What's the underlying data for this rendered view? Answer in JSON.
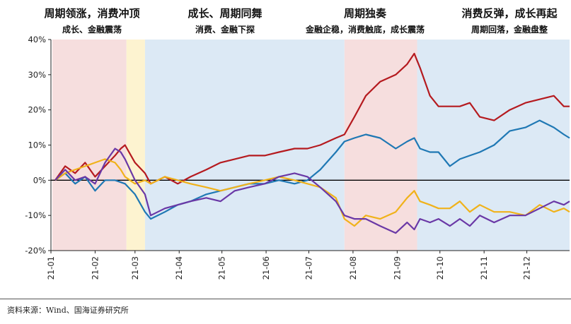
{
  "colors": {
    "cyclical": "#b51a1f",
    "growth": "#1f78b4",
    "consumption": "#f0b21a",
    "financial": "#6a38a6",
    "band_pink": "#f6dede",
    "band_yellow": "#fdf3d0",
    "band_blue": "#dce9f5"
  },
  "source": "资料来源：Wind、国海证券研究所",
  "chart_data": {
    "type": "line",
    "x_ticks": [
      "21-01",
      "21-02",
      "21-03",
      "21-04",
      "21-05",
      "21-06",
      "21-07",
      "21-08",
      "21-09",
      "21-10",
      "21-11",
      "21-12"
    ],
    "ylim": [
      -20,
      40
    ],
    "y_ticks": [
      "-20%",
      "-10%",
      "0%",
      "10%",
      "20%",
      "30%",
      "40%"
    ],
    "phases": [
      {
        "title": "周期领涨，消费冲顶",
        "subtitle": "成长、金融震荡",
        "start": "2021-01-02",
        "end": "2021-02-23",
        "band": "band_pink"
      },
      {
        "title": "",
        "subtitle": "",
        "start": "2021-02-23",
        "end": "2021-03-08",
        "band": "band_yellow"
      },
      {
        "title": "成长、周期同舞",
        "subtitle": "消费、金融下探",
        "start": "2021-03-08",
        "end": "2021-07-26",
        "band": "band_blue"
      },
      {
        "title": "周期独奏",
        "subtitle": "金融企稳，消费触底，成长震荡",
        "start": "2021-07-26",
        "end": "2021-09-15",
        "band": "band_pink"
      },
      {
        "title": "消费反弹，成长再起",
        "subtitle": "周期回落，金融盘整",
        "start": "2021-09-15",
        "end": "2021-12-31",
        "band": "band_blue"
      }
    ],
    "series": [
      {
        "color_key": "cyclical",
        "points": [
          [
            "2021-01-04",
            0
          ],
          [
            "2021-01-11",
            4
          ],
          [
            "2021-01-18",
            2
          ],
          [
            "2021-01-25",
            5
          ],
          [
            "2021-02-01",
            1
          ],
          [
            "2021-02-08",
            4
          ],
          [
            "2021-02-15",
            7
          ],
          [
            "2021-02-19",
            9
          ],
          [
            "2021-02-22",
            10
          ],
          [
            "2021-03-01",
            5
          ],
          [
            "2021-03-08",
            2
          ],
          [
            "2021-03-12",
            -1
          ],
          [
            "2021-03-22",
            1
          ],
          [
            "2021-03-31",
            -1
          ],
          [
            "2021-04-09",
            1
          ],
          [
            "2021-04-20",
            3
          ],
          [
            "2021-04-30",
            5
          ],
          [
            "2021-05-10",
            6
          ],
          [
            "2021-05-20",
            7
          ],
          [
            "2021-05-31",
            7
          ],
          [
            "2021-06-10",
            8
          ],
          [
            "2021-06-21",
            9
          ],
          [
            "2021-06-30",
            9
          ],
          [
            "2021-07-09",
            10
          ],
          [
            "2021-07-20",
            12
          ],
          [
            "2021-07-26",
            13
          ],
          [
            "2021-08-02",
            18
          ],
          [
            "2021-08-10",
            24
          ],
          [
            "2021-08-20",
            28
          ],
          [
            "2021-08-31",
            30
          ],
          [
            "2021-09-08",
            33
          ],
          [
            "2021-09-13",
            36
          ],
          [
            "2021-09-17",
            32
          ],
          [
            "2021-09-24",
            24
          ],
          [
            "2021-09-30",
            21
          ],
          [
            "2021-10-15",
            21
          ],
          [
            "2021-10-22",
            22
          ],
          [
            "2021-10-29",
            18
          ],
          [
            "2021-11-08",
            17
          ],
          [
            "2021-11-19",
            20
          ],
          [
            "2021-11-30",
            22
          ],
          [
            "2021-12-10",
            23
          ],
          [
            "2021-12-20",
            24
          ],
          [
            "2021-12-27",
            21
          ],
          [
            "2021-12-31",
            21
          ]
        ]
      },
      {
        "color_key": "growth",
        "points": [
          [
            "2021-01-04",
            0
          ],
          [
            "2021-01-11",
            2
          ],
          [
            "2021-01-18",
            -1
          ],
          [
            "2021-01-25",
            1
          ],
          [
            "2021-02-01",
            -3
          ],
          [
            "2021-02-08",
            0
          ],
          [
            "2021-02-15",
            0
          ],
          [
            "2021-02-22",
            -1
          ],
          [
            "2021-03-01",
            -4
          ],
          [
            "2021-03-08",
            -9
          ],
          [
            "2021-03-12",
            -11
          ],
          [
            "2021-03-22",
            -9
          ],
          [
            "2021-03-31",
            -7
          ],
          [
            "2021-04-09",
            -6
          ],
          [
            "2021-04-20",
            -4
          ],
          [
            "2021-04-30",
            -3
          ],
          [
            "2021-05-10",
            -2
          ],
          [
            "2021-05-20",
            -1
          ],
          [
            "2021-05-31",
            -1
          ],
          [
            "2021-06-10",
            0
          ],
          [
            "2021-06-21",
            -1
          ],
          [
            "2021-06-30",
            0
          ],
          [
            "2021-07-09",
            3
          ],
          [
            "2021-07-20",
            8
          ],
          [
            "2021-07-26",
            11
          ],
          [
            "2021-08-02",
            12
          ],
          [
            "2021-08-10",
            13
          ],
          [
            "2021-08-20",
            12
          ],
          [
            "2021-08-31",
            9
          ],
          [
            "2021-09-08",
            11
          ],
          [
            "2021-09-13",
            12
          ],
          [
            "2021-09-17",
            9
          ],
          [
            "2021-09-24",
            8
          ],
          [
            "2021-09-30",
            8
          ],
          [
            "2021-10-08",
            4
          ],
          [
            "2021-10-15",
            6
          ],
          [
            "2021-10-22",
            7
          ],
          [
            "2021-10-29",
            8
          ],
          [
            "2021-11-08",
            10
          ],
          [
            "2021-11-19",
            14
          ],
          [
            "2021-11-30",
            15
          ],
          [
            "2021-12-10",
            17
          ],
          [
            "2021-12-20",
            15
          ],
          [
            "2021-12-27",
            13
          ],
          [
            "2021-12-31",
            12
          ]
        ]
      },
      {
        "color_key": "consumption",
        "points": [
          [
            "2021-01-04",
            0
          ],
          [
            "2021-01-11",
            2
          ],
          [
            "2021-01-18",
            3
          ],
          [
            "2021-01-25",
            4
          ],
          [
            "2021-02-01",
            5
          ],
          [
            "2021-02-08",
            6
          ],
          [
            "2021-02-15",
            5
          ],
          [
            "2021-02-19",
            3
          ],
          [
            "2021-02-22",
            1
          ],
          [
            "2021-03-01",
            -1
          ],
          [
            "2021-03-08",
            0
          ],
          [
            "2021-03-12",
            -1
          ],
          [
            "2021-03-22",
            1
          ],
          [
            "2021-03-31",
            0
          ],
          [
            "2021-04-09",
            -1
          ],
          [
            "2021-04-20",
            -2
          ],
          [
            "2021-04-30",
            -3
          ],
          [
            "2021-05-10",
            -2
          ],
          [
            "2021-05-20",
            -1
          ],
          [
            "2021-05-31",
            0
          ],
          [
            "2021-06-10",
            1
          ],
          [
            "2021-06-21",
            0
          ],
          [
            "2021-06-30",
            -1
          ],
          [
            "2021-07-09",
            -2
          ],
          [
            "2021-07-20",
            -5
          ],
          [
            "2021-07-26",
            -11
          ],
          [
            "2021-08-02",
            -13
          ],
          [
            "2021-08-10",
            -10
          ],
          [
            "2021-08-20",
            -11
          ],
          [
            "2021-08-31",
            -9
          ],
          [
            "2021-09-08",
            -5
          ],
          [
            "2021-09-13",
            -3
          ],
          [
            "2021-09-17",
            -6
          ],
          [
            "2021-09-24",
            -7
          ],
          [
            "2021-09-30",
            -8
          ],
          [
            "2021-10-08",
            -8
          ],
          [
            "2021-10-15",
            -6
          ],
          [
            "2021-10-22",
            -9
          ],
          [
            "2021-10-29",
            -7
          ],
          [
            "2021-11-08",
            -9
          ],
          [
            "2021-11-19",
            -9
          ],
          [
            "2021-11-30",
            -10
          ],
          [
            "2021-12-10",
            -7
          ],
          [
            "2021-12-20",
            -9
          ],
          [
            "2021-12-27",
            -8
          ],
          [
            "2021-12-31",
            -9
          ]
        ]
      },
      {
        "color_key": "financial",
        "points": [
          [
            "2021-01-04",
            0
          ],
          [
            "2021-01-11",
            3
          ],
          [
            "2021-01-18",
            0
          ],
          [
            "2021-01-25",
            1
          ],
          [
            "2021-02-01",
            -1
          ],
          [
            "2021-02-08",
            5
          ],
          [
            "2021-02-15",
            9
          ],
          [
            "2021-02-19",
            8
          ],
          [
            "2021-02-22",
            6
          ],
          [
            "2021-03-01",
            0
          ],
          [
            "2021-03-08",
            -4
          ],
          [
            "2021-03-12",
            -10
          ],
          [
            "2021-03-22",
            -8
          ],
          [
            "2021-03-31",
            -7
          ],
          [
            "2021-04-09",
            -6
          ],
          [
            "2021-04-20",
            -5
          ],
          [
            "2021-04-30",
            -6
          ],
          [
            "2021-05-10",
            -3
          ],
          [
            "2021-05-20",
            -2
          ],
          [
            "2021-05-31",
            -1
          ],
          [
            "2021-06-10",
            1
          ],
          [
            "2021-06-21",
            2
          ],
          [
            "2021-06-30",
            1
          ],
          [
            "2021-07-09",
            -2
          ],
          [
            "2021-07-20",
            -6
          ],
          [
            "2021-07-26",
            -10
          ],
          [
            "2021-08-02",
            -11
          ],
          [
            "2021-08-10",
            -11
          ],
          [
            "2021-08-20",
            -13
          ],
          [
            "2021-08-31",
            -15
          ],
          [
            "2021-09-08",
            -12
          ],
          [
            "2021-09-13",
            -14
          ],
          [
            "2021-09-17",
            -11
          ],
          [
            "2021-09-24",
            -12
          ],
          [
            "2021-09-30",
            -11
          ],
          [
            "2021-10-08",
            -13
          ],
          [
            "2021-10-15",
            -11
          ],
          [
            "2021-10-22",
            -13
          ],
          [
            "2021-10-29",
            -10
          ],
          [
            "2021-11-08",
            -12
          ],
          [
            "2021-11-19",
            -10
          ],
          [
            "2021-11-30",
            -10
          ],
          [
            "2021-12-10",
            -8
          ],
          [
            "2021-12-20",
            -6
          ],
          [
            "2021-12-27",
            -7
          ],
          [
            "2021-12-31",
            -6
          ]
        ]
      }
    ]
  }
}
